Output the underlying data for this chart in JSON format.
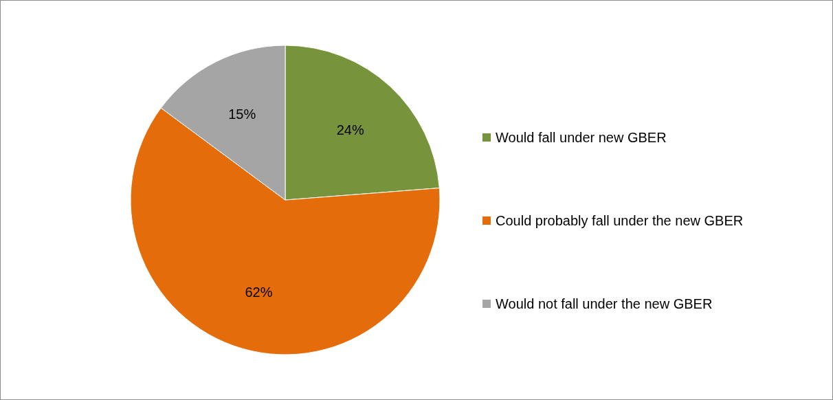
{
  "chart_data": {
    "type": "pie",
    "categories": [
      "Would fall under new GBER",
      "Could probably fall under the new GBER",
      "Would not fall under the new GBER"
    ],
    "values": [
      24,
      62,
      15
    ],
    "colors": [
      "#77933c",
      "#e46c0a",
      "#a5a5a5"
    ],
    "value_labels": [
      "24%",
      "62%",
      "15%"
    ],
    "legend": "right"
  }
}
